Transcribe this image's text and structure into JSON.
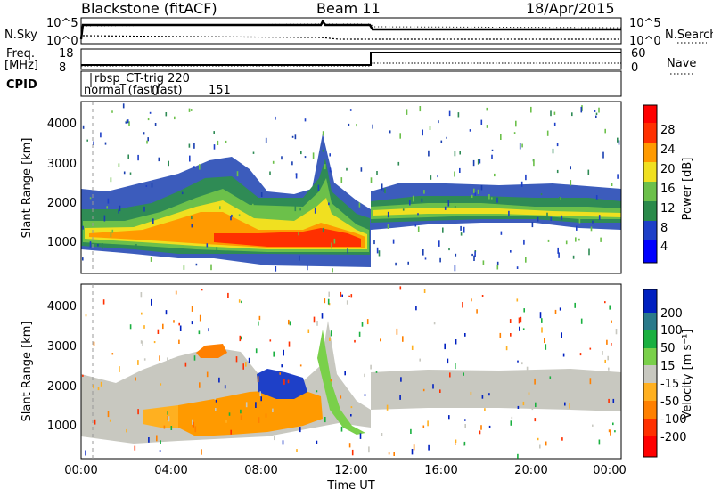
{
  "header": {
    "title": "Blackstone (fitACF)",
    "beam": "Beam 11",
    "date": "18/Apr/2015"
  },
  "status_panel": {
    "left_labels": [
      "N.Sky",
      "Freq.",
      "[MHz]",
      "CPID"
    ],
    "right_labels": [
      "N.Search",
      "Nave"
    ],
    "nsky_ticks": [
      "10^5",
      "10^0"
    ],
    "nsearch_ticks": [
      "10^5",
      "10^0"
    ],
    "freq_ticks": [
      "18",
      "8"
    ],
    "nave_ticks": [
      "60",
      "0"
    ],
    "cpid_labels": [
      "rbsp_CT-trig 220",
      "normal (fast)",
      "(fast)",
      "151"
    ]
  },
  "chart_data": [
    {
      "type": "heatmap",
      "name": "Power",
      "xlabel": "",
      "ylabel": "Slant Range [km]",
      "xlim": [
        0,
        24
      ],
      "ylim": [
        180,
        4600
      ],
      "yticks": [
        "1000",
        "2000",
        "3000",
        "4000"
      ],
      "colorbar": {
        "label": "Power [dB]",
        "ticks": [
          "28",
          "24",
          "20",
          "16",
          "12",
          "8",
          "4"
        ],
        "colors": [
          "#0000ff",
          "#1e40c8",
          "#2a8a4a",
          "#6cc04a",
          "#f0e020",
          "#ff9a00",
          "#ff3000",
          "#ff0000"
        ]
      }
    },
    {
      "type": "heatmap",
      "name": "Velocity",
      "xlabel": "Time UT",
      "ylabel": "Slant Range [km]",
      "xlim": [
        0,
        24
      ],
      "ylim": [
        180,
        4600
      ],
      "xticks": [
        "00:00",
        "04:00",
        "08:00",
        "12:00",
        "16:00",
        "20:00",
        "00:00"
      ],
      "yticks": [
        "1000",
        "2000",
        "3000",
        "4000"
      ],
      "colorbar": {
        "label": "Velocity [m s⁻¹]",
        "ticks": [
          "200",
          "100",
          "50",
          "15",
          "-15",
          "-50",
          "-100",
          "-200"
        ],
        "colors": [
          "#0020c0",
          "#2a7a8a",
          "#1ab040",
          "#7ad04a",
          "#c8c8c0",
          "#ffb020",
          "#ff8000",
          "#ff3000",
          "#ff0000"
        ]
      }
    }
  ]
}
